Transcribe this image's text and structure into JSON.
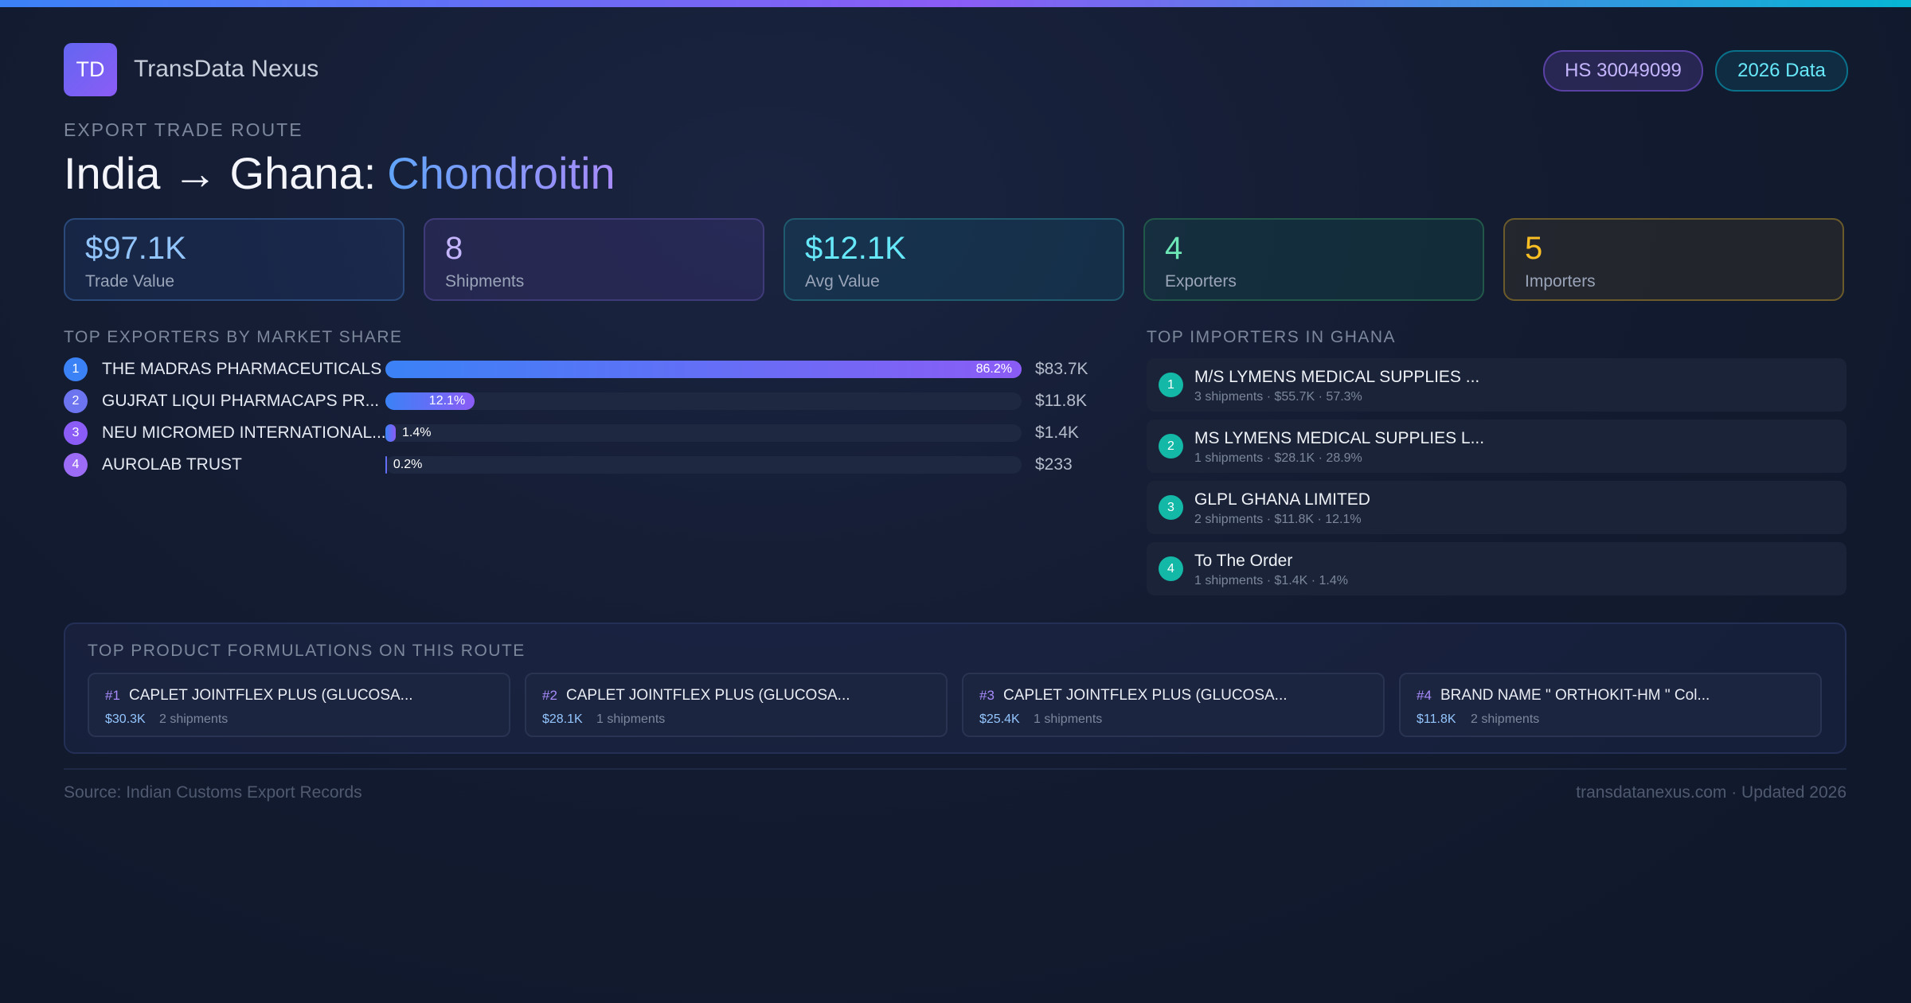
{
  "header": {
    "logo": "TD",
    "brand": "TransData Nexus",
    "badges": [
      "HS 30049099",
      "2026 Data"
    ]
  },
  "route": {
    "eyebrow": "EXPORT TRADE ROUTE",
    "title": "India → Ghana:",
    "product": "Chondroitin"
  },
  "stats": [
    {
      "value": "$97.1K",
      "label": "Trade Value"
    },
    {
      "value": "8",
      "label": "Shipments"
    },
    {
      "value": "$12.1K",
      "label": "Avg Value"
    },
    {
      "value": "4",
      "label": "Exporters"
    },
    {
      "value": "5",
      "label": "Importers"
    }
  ],
  "exporters": {
    "heading": "TOP EXPORTERS BY MARKET SHARE",
    "rows": [
      {
        "rank": "1",
        "name": "THE MADRAS PHARMACEUTICALS",
        "share": 86.2,
        "share_label": "86.2%",
        "value": "$83.7K"
      },
      {
        "rank": "2",
        "name": "GUJRAT LIQUI PHARMACAPS PR...",
        "share": 12.1,
        "share_label": "12.1%",
        "value": "$11.8K"
      },
      {
        "rank": "3",
        "name": "NEU MICROMED INTERNATIONAL...",
        "share": 1.4,
        "share_label": "1.4%",
        "value": "$1.4K"
      },
      {
        "rank": "4",
        "name": "AUROLAB TRUST",
        "share": 0.2,
        "share_label": "0.2%",
        "value": "$233"
      }
    ]
  },
  "importers": {
    "heading": "TOP IMPORTERS IN GHANA",
    "rows": [
      {
        "rank": "1",
        "name": "M/S LYMENS MEDICAL SUPPLIES ...",
        "detail": "3 shipments · $55.7K · 57.3%"
      },
      {
        "rank": "2",
        "name": "MS LYMENS MEDICAL SUPPLIES L...",
        "detail": "1 shipments · $28.1K · 28.9%"
      },
      {
        "rank": "3",
        "name": "GLPL GHANA LIMITED",
        "detail": "2 shipments · $11.8K · 12.1%"
      },
      {
        "rank": "4",
        "name": "To The Order",
        "detail": "1 shipments · $1.4K · 1.4%"
      }
    ]
  },
  "products": {
    "heading": "TOP PRODUCT FORMULATIONS ON THIS ROUTE",
    "items": [
      {
        "rank": "#1",
        "name": "CAPLET JOINTFLEX PLUS (GLUCOSA...",
        "value": "$30.3K",
        "shipments": "2 shipments"
      },
      {
        "rank": "#2",
        "name": "CAPLET JOINTFLEX PLUS (GLUCOSA...",
        "value": "$28.1K",
        "shipments": "1 shipments"
      },
      {
        "rank": "#3",
        "name": "CAPLET JOINTFLEX PLUS (GLUCOSA...",
        "value": "$25.4K",
        "shipments": "1 shipments"
      },
      {
        "rank": "#4",
        "name": "BRAND NAME \" ORTHOKIT-HM \" Col...",
        "value": "$11.8K",
        "shipments": "2 shipments"
      }
    ]
  },
  "footer": {
    "source": "Source: Indian Customs Export Records",
    "site": "transdatanexus.com · Updated 2026"
  }
}
